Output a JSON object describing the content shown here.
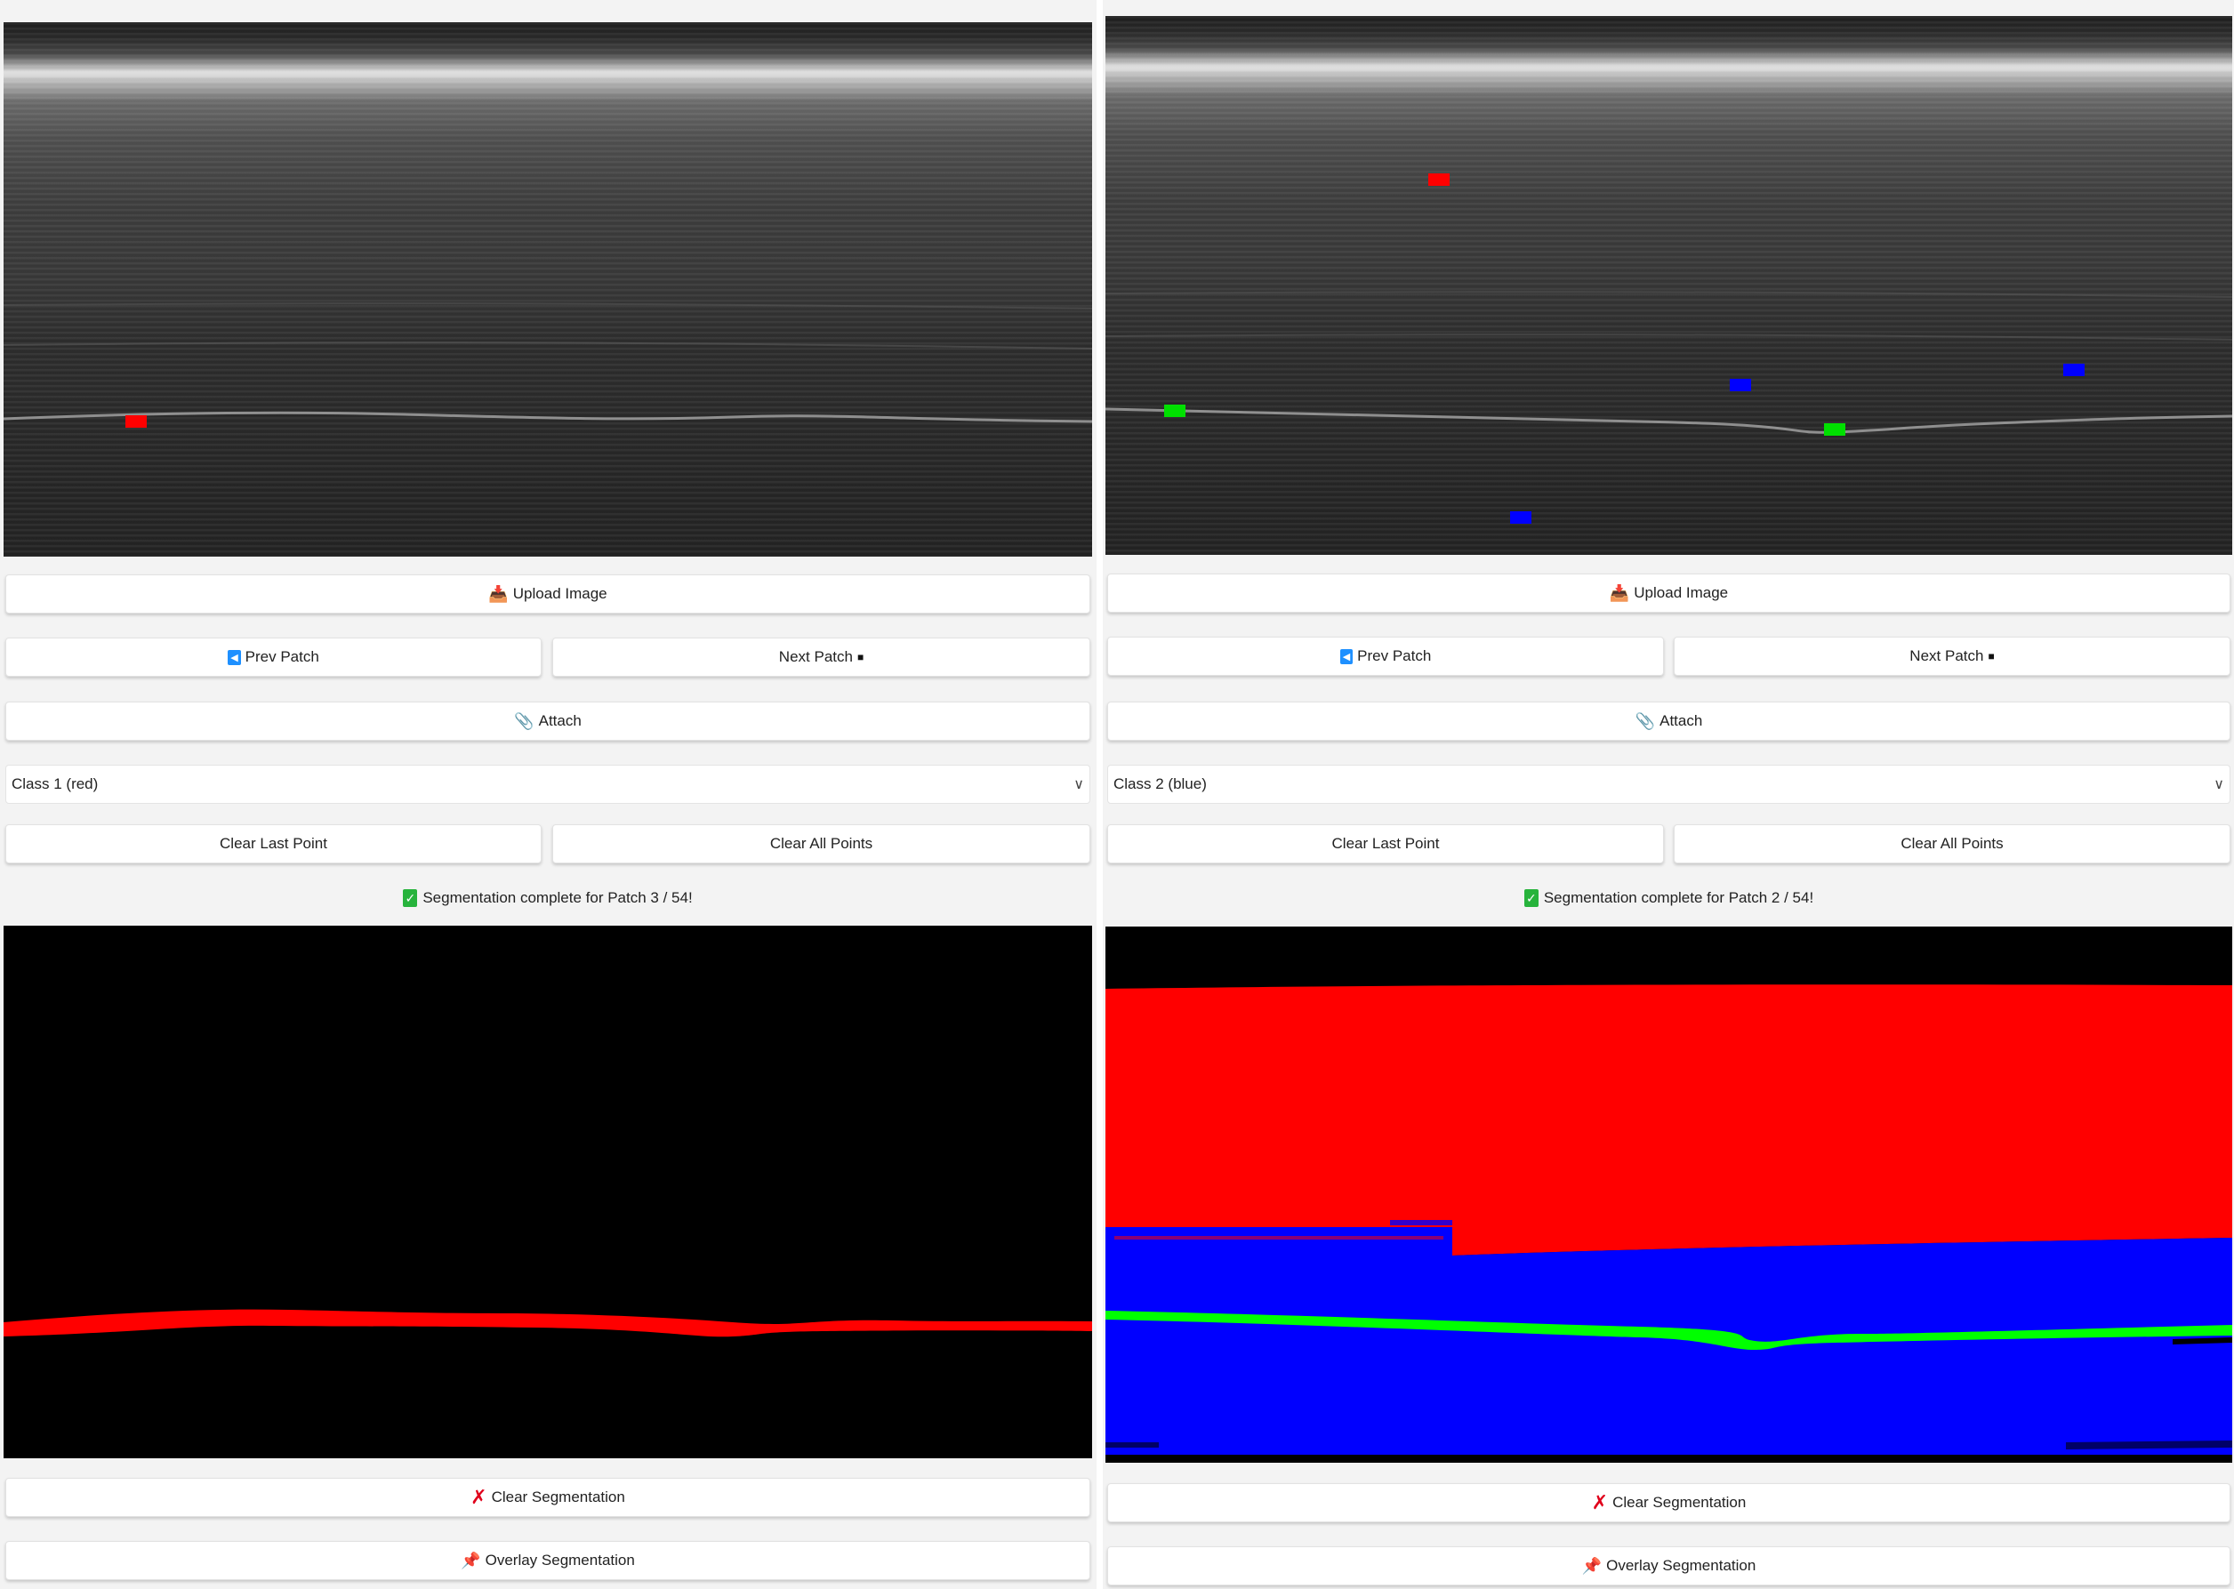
{
  "panels": [
    {
      "id": "left",
      "upload_label": "Upload Image",
      "prev_label": "Prev Patch",
      "next_label": "Next Patch",
      "attach_label": "Attach",
      "class_select": {
        "value": "Class 1 (red)"
      },
      "clear_last_label": "Clear Last Point",
      "clear_all_label": "Clear All Points",
      "status_text": "Segmentation complete for Patch 3 / 54!",
      "clear_seg_label": "Clear Segmentation",
      "overlay_seg_label": "Overlay Segmentation"
    },
    {
      "id": "right",
      "upload_label": "Upload Image",
      "prev_label": "Prev Patch",
      "next_label": "Next Patch",
      "attach_label": "Attach",
      "class_select": {
        "value": "Class 2 (blue)"
      },
      "clear_last_label": "Clear Last Point",
      "clear_all_label": "Clear All Points",
      "status_text": "Segmentation complete for Patch 2 / 54!",
      "clear_seg_label": "Clear Segmentation",
      "overlay_seg_label": "Overlay Segmentation"
    }
  ],
  "colors": {
    "class_1": "#ff0000",
    "class_2": "#0000ff",
    "class_3": "#00e000",
    "background": "#000000"
  },
  "icons": {
    "upload": "upload-icon",
    "prev": "prev-arrow-icon",
    "next": "next-arrow-icon",
    "attach": "paperclip-icon",
    "clear_seg": "cross-icon",
    "overlay_seg": "pushpin-icon",
    "status": "checkmark-icon"
  }
}
